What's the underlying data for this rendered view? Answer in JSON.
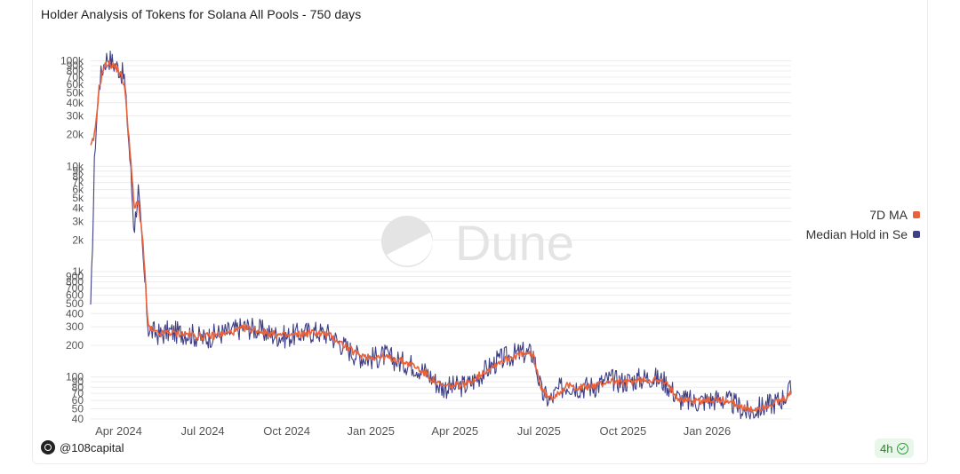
{
  "header": {
    "title": "Holder Analysis of Tokens for Solana All Pools - 750 days"
  },
  "watermark": {
    "text": "Dune"
  },
  "footer": {
    "author": "@108capital",
    "freshness": "4h"
  },
  "colors": {
    "ma": "#e8613a",
    "median": "#3f3f86",
    "grid": "#ececec",
    "axis_text": "#555555"
  },
  "chart_data": {
    "type": "line",
    "title": "Holder Analysis of Tokens for Solana All Pools - 750 days",
    "y_scale": "log",
    "ylim": [
      40,
      130000
    ],
    "y_ticks": [
      40,
      50,
      60,
      70,
      80,
      90,
      100,
      200,
      300,
      400,
      500,
      600,
      700,
      800,
      900,
      1000,
      2000,
      3000,
      4000,
      5000,
      6000,
      7000,
      8000,
      9000,
      10000,
      20000,
      30000,
      40000,
      50000,
      60000,
      70000,
      80000,
      90000,
      100000
    ],
    "y_tick_labels": [
      "40",
      "50",
      "60",
      "70",
      "80",
      "90",
      "100",
      "200",
      "300",
      "400",
      "500",
      "600",
      "700",
      "800",
      "900",
      "1k",
      "2k",
      "3k",
      "4k",
      "5k",
      "6k",
      "7k",
      "8k",
      "9k",
      "10k",
      "20k",
      "30k",
      "40k",
      "50k",
      "60k",
      "70k",
      "80k",
      "90k",
      "100k"
    ],
    "x_ticks": [
      {
        "label": "Apr 2024",
        "month": 1
      },
      {
        "label": "Jul 2024",
        "month": 4
      },
      {
        "label": "Oct 2024",
        "month": 7
      },
      {
        "label": "Jan 2025",
        "month": 10
      },
      {
        "label": "Apr 2025",
        "month": 13
      },
      {
        "label": "Jul 2025",
        "month": 16
      },
      {
        "label": "Oct 2025",
        "month": 19
      },
      {
        "label": "Jan 2026",
        "month": 22
      }
    ],
    "x_unit": "months since 2024-03-01",
    "xlim": [
      0,
      25
    ],
    "legend": [
      {
        "name": "7D MA",
        "color": "#e8613a"
      },
      {
        "name": "Median Hold in Se",
        "color": "#3f3f86"
      }
    ],
    "series": [
      {
        "name": "Median Hold in Se",
        "color": "#3f3f86",
        "x": [
          0.0,
          0.15,
          0.3,
          0.45,
          0.6,
          0.8,
          1.0,
          1.2,
          1.4,
          1.55,
          1.7,
          1.85,
          1.95,
          2.05,
          2.2,
          2.35,
          2.5,
          2.75,
          3.0,
          3.5,
          4.0,
          4.5,
          5.0,
          5.5,
          6.0,
          6.5,
          7.0,
          7.5,
          8.0,
          8.5,
          9.0,
          9.5,
          10.0,
          10.5,
          11.0,
          11.5,
          12.0,
          12.5,
          13.0,
          13.5,
          14.0,
          14.5,
          15.0,
          15.4,
          15.8,
          16.1,
          16.4,
          16.7,
          17.0,
          17.5,
          18.0,
          18.5,
          19.0,
          19.5,
          20.0,
          20.5,
          21.0,
          21.5,
          22.0,
          22.5,
          23.0,
          23.5,
          23.8,
          24.2,
          24.6,
          25.0
        ],
        "values": [
          400,
          15000,
          60000,
          90000,
          110000,
          95000,
          85000,
          70000,
          12000,
          2500,
          6000,
          1500,
          700,
          290,
          270,
          260,
          250,
          270,
          265,
          260,
          230,
          255,
          270,
          300,
          280,
          250,
          240,
          260,
          270,
          255,
          200,
          160,
          150,
          160,
          140,
          130,
          110,
          80,
          80,
          85,
          110,
          140,
          160,
          170,
          165,
          70,
          60,
          75,
          85,
          80,
          82,
          95,
          90,
          95,
          100,
          90,
          62,
          58,
          60,
          62,
          55,
          45,
          50,
          55,
          60,
          75
        ]
      },
      {
        "name": "7D MA",
        "color": "#e8613a",
        "x": [
          0.0,
          0.15,
          0.3,
          0.45,
          0.6,
          0.8,
          1.0,
          1.2,
          1.4,
          1.55,
          1.7,
          1.85,
          1.95,
          2.05,
          2.2,
          2.35,
          2.5,
          2.75,
          3.0,
          3.5,
          4.0,
          4.5,
          5.0,
          5.5,
          6.0,
          6.5,
          7.0,
          7.5,
          8.0,
          8.5,
          9.0,
          9.5,
          10.0,
          10.5,
          11.0,
          11.5,
          12.0,
          12.5,
          13.0,
          13.5,
          14.0,
          14.5,
          15.0,
          15.4,
          15.8,
          16.1,
          16.4,
          16.7,
          17.0,
          17.5,
          18.0,
          18.5,
          19.0,
          19.5,
          20.0,
          20.5,
          21.0,
          21.5,
          22.0,
          22.5,
          23.0,
          23.5,
          23.8,
          24.2,
          24.6,
          25.0
        ],
        "values": [
          15000,
          20000,
          55000,
          85000,
          95000,
          90000,
          82000,
          60000,
          15000,
          4000,
          4500,
          2200,
          800,
          300,
          275,
          260,
          255,
          265,
          260,
          255,
          240,
          250,
          265,
          290,
          275,
          255,
          245,
          255,
          265,
          250,
          205,
          165,
          155,
          155,
          145,
          130,
          105,
          82,
          82,
          88,
          110,
          135,
          155,
          165,
          160,
          75,
          62,
          72,
          82,
          80,
          82,
          92,
          88,
          92,
          95,
          88,
          63,
          59,
          60,
          61,
          56,
          48,
          50,
          54,
          58,
          68
        ]
      }
    ]
  }
}
